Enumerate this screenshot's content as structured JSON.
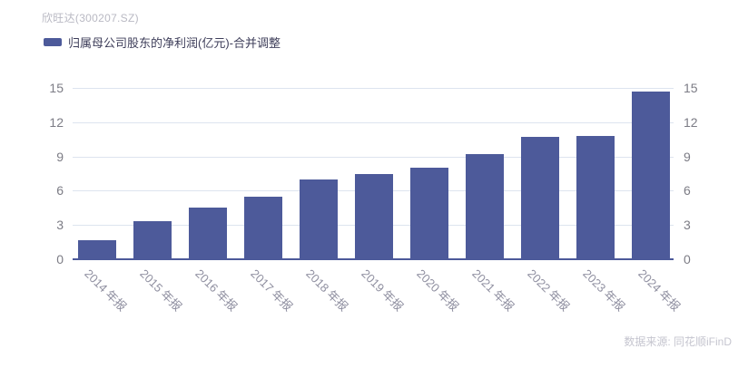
{
  "header": {
    "title": "欣旺达(300207.SZ)"
  },
  "legend": {
    "label": "归属母公司股东的净利润(亿元)-合并调整",
    "swatch_color": "#4d5a9a"
  },
  "chart_data": {
    "type": "bar",
    "title": "欣旺达(300207.SZ)",
    "series_name": "归属母公司股东的净利润(亿元)-合并调整",
    "categories": [
      "2014 年报",
      "2015 年报",
      "2016 年报",
      "2017 年报",
      "2018 年报",
      "2019 年报",
      "2020 年报",
      "2021 年报",
      "2022 年报",
      "2023 年报",
      "2024 年报"
    ],
    "values": [
      1.7,
      3.3,
      4.5,
      5.5,
      7.0,
      7.5,
      8.0,
      9.2,
      10.7,
      10.8,
      14.7
    ],
    "xlabel": "",
    "ylabel": "",
    "ylim": [
      0,
      15
    ],
    "yticks": [
      0,
      3,
      6,
      9,
      12,
      15
    ],
    "grid": true,
    "y_axis_on_both_sides": true,
    "x_label_rotation_deg": 45,
    "legend_position": "top-left",
    "bar_color": "#4d5a9a"
  },
  "footer": {
    "source": "数据来源: 同花顺iFinD"
  },
  "colors": {
    "bar": "#4d5a9a",
    "axis_line": "#4c5999",
    "gridline": "#dde4ef",
    "y_tick_label": "#7c7c85",
    "x_tick_label": "#8f8fa0",
    "title": "#b9b9c3",
    "legend_text": "#3e3e5a",
    "source_text": "#c5c5cf"
  }
}
